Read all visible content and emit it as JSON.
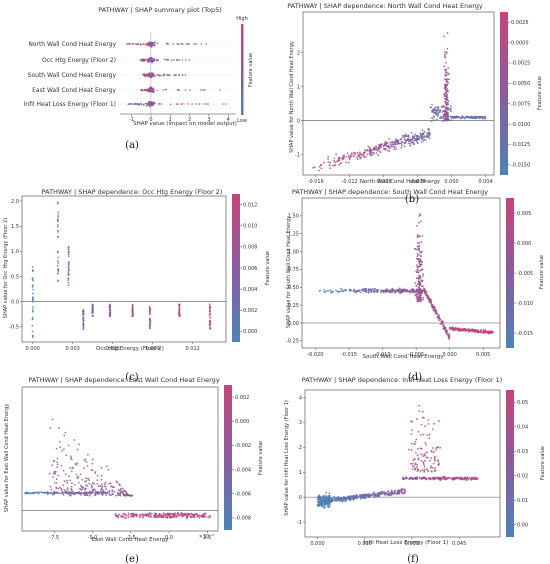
{
  "chart_data": [
    {
      "id": "a",
      "type": "scatter",
      "title": "PATHWAY | SHAP summary plot (Top5)",
      "caption": "(a)",
      "xlabel": "SHAP value (impact on model output)",
      "xticks": [
        -1,
        0,
        1,
        2,
        3,
        4
      ],
      "xlim": [
        -1.6,
        4.4
      ],
      "features": [
        "North Wall Cond Heat Energy",
        "Occ Htg Energy (Floor 2)",
        "South Wall Cond Heat Energy",
        "East Wall Cond Heat Energy",
        "Infil Heat Loss Energy (Floor 1)"
      ],
      "spread": [
        [
          -1.4,
          2.9
        ],
        [
          -0.6,
          2.0
        ],
        [
          -0.5,
          1.8
        ],
        [
          -0.6,
          3.6
        ],
        [
          -1.3,
          4.0
        ]
      ],
      "colorbar": {
        "label": "Feature value",
        "high": "High",
        "low": "Low"
      }
    },
    {
      "id": "b",
      "type": "scatter",
      "title": "PATHWAY | SHAP dependence: North Wall Cond Heat Energy",
      "caption": "(b)",
      "xlabel": "North Wall Cond Heat Energy",
      "ylabel": "SHAP value for North Wall Cond Heat Energy",
      "xlim": [
        -0.0175,
        0.005
      ],
      "ylim": [
        -1.6,
        3.2
      ],
      "xticks": [
        -0.016,
        -0.012,
        -0.008,
        -0.004,
        0.0,
        0.004
      ],
      "xtick_labels": [
        "-0.016",
        "-0.012",
        "-0.008",
        "-0.004",
        "0.000",
        "0.004"
      ],
      "yticks": [
        -1,
        0,
        1,
        2
      ],
      "colorbar": {
        "label": "Feature value",
        "ticks": [
          "0.0025",
          "0.0000",
          "-0.0025",
          "-0.0050",
          "-0.0075",
          "-0.0100",
          "-0.0125",
          "-0.0150"
        ]
      }
    },
    {
      "id": "c",
      "type": "scatter",
      "title": "PATHWAY | SHAP dependence: Occ Htg Energy (Floor 2)",
      "caption": "(c)",
      "xlabel": "Occ Htg Energy (Floor 2)",
      "ylabel": "SHAP value for Occ Htg Energy (Floor 2)",
      "xlim": [
        -0.0008,
        0.0145
      ],
      "ylim": [
        -0.8,
        2.1
      ],
      "xticks": [
        0.0,
        0.003,
        0.006,
        0.009,
        0.012
      ],
      "xtick_labels": [
        "0.000",
        "0.003",
        "0.006",
        "0.009",
        "0.012"
      ],
      "yticks": [
        -0.5,
        0.0,
        0.5,
        1.0,
        1.5,
        2.0
      ],
      "ytick_labels": [
        "-0.5",
        "0.0",
        "0.5",
        "1.0",
        "1.5",
        "2.0"
      ],
      "colorbar": {
        "label": "Feature value",
        "ticks": [
          "0.012",
          "0.010",
          "0.008",
          "0.006",
          "0.004",
          "0.002",
          "0.000"
        ]
      }
    },
    {
      "id": "d",
      "type": "scatter",
      "title": "PATHWAY | SHAP dependence: South Wall Cond Heat Energy",
      "caption": "(d)",
      "xlabel": "South Wall Cond Heat Energy",
      "ylabel": "SHAP value for South Wall Cond Heat Energy",
      "xlim": [
        -0.022,
        0.0075
      ],
      "ylim": [
        -0.35,
        1.75
      ],
      "xticks": [
        -0.02,
        -0.015,
        -0.01,
        -0.005,
        0.0,
        0.005
      ],
      "xtick_labels": [
        "-0.020",
        "-0.015",
        "-0.010",
        "-0.005",
        "0.000",
        "0.005"
      ],
      "yticks": [
        -0.25,
        0.0,
        0.25,
        0.5,
        0.75,
        1.0,
        1.25,
        1.5
      ],
      "ytick_labels": [
        "-0.25",
        "0.00",
        "0.25",
        "0.50",
        "0.75",
        "1.00",
        "1.25",
        "1.50"
      ],
      "colorbar": {
        "label": "Feature value",
        "ticks": [
          "0.005",
          "0.000",
          "-0.005",
          "-0.010",
          "-0.015"
        ]
      }
    },
    {
      "id": "e",
      "type": "scatter",
      "title": "PATHWAY | SHAP dependence: East Wall Cond Heat Energy",
      "caption": "(e)",
      "xlabel": "East Wall Cond Heat Energy",
      "ylabel": "SHAP value for East Wall Cond Heat Energy",
      "xlim": [
        -9.6,
        3.2
      ],
      "ylim": [
        -0.7,
        4.2
      ],
      "xticks": [
        -7.5,
        -5.0,
        -2.5,
        0.0,
        2.5
      ],
      "xtick_labels": [
        "-7.5",
        "-5.0",
        "-2.5",
        "0.0",
        "2.5"
      ],
      "x_multiplier": "×10⁻³",
      "colorbar": {
        "label": "Feature value",
        "ticks": [
          "0.002",
          "0.000",
          "-0.002",
          "-0.004",
          "-0.006",
          "-0.008"
        ]
      }
    },
    {
      "id": "f",
      "type": "scatter",
      "title": "PATHWAY | SHAP dependence: Infil Heat Loss Energy (Floor 1)",
      "caption": "(f)",
      "xlabel": "Infil Heat Loss Energy (Floor 1)",
      "ylabel": "SHAP value for Infil Heat Loss Energy (Floor 1)",
      "xlim": [
        -0.004,
        0.058
      ],
      "ylim": [
        -1.6,
        4.3
      ],
      "xticks": [
        0.0,
        0.015,
        0.03,
        0.045
      ],
      "xtick_labels": [
        "0.000",
        "0.015",
        "0.030",
        "0.045"
      ],
      "yticks": [
        -1,
        0,
        1,
        2,
        3,
        4
      ],
      "colorbar": {
        "label": "Feature value",
        "ticks": [
          "0.05",
          "0.04",
          "0.03",
          "0.02",
          "0.01",
          "0.00"
        ]
      }
    }
  ]
}
